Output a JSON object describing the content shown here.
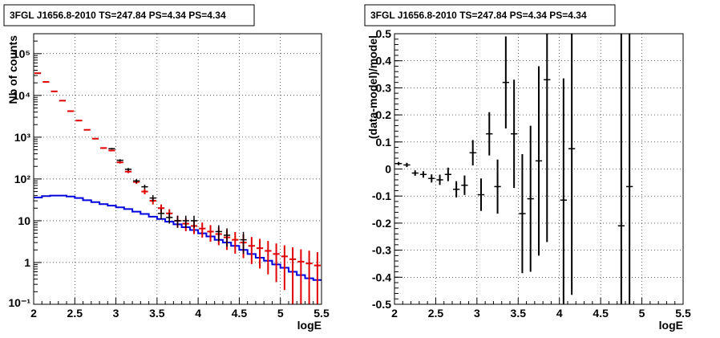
{
  "colors": {
    "data": "#000000",
    "model_total": "#e00000",
    "model_component": "#0000dd",
    "frame": "#000000",
    "grid": "#000000"
  },
  "chart_data": [
    {
      "type": "line",
      "title": "3FGL J1656.8-2010 TS=247.84 PS=4.34 PS=4.34",
      "xlabel": "logE",
      "ylabel": "Nb of counts",
      "xlim": [
        2,
        5.5
      ],
      "ylim": [
        0.1,
        300000
      ],
      "yscale": "log",
      "grid": true,
      "x_ticks": [
        "2",
        "2.5",
        "3",
        "3.5",
        "4",
        "4.5",
        "5",
        "5.5"
      ],
      "y_ticks": [
        "10⁻¹",
        "1",
        "10",
        "10²",
        "10³",
        "10⁴",
        "10⁵"
      ],
      "bin_width": 0.1,
      "data": {
        "x": [
          2.95,
          3.05,
          3.15,
          3.25,
          3.35,
          3.45,
          3.55,
          3.65,
          3.75,
          3.85,
          3.95,
          4.25,
          4.35,
          4.55
        ],
        "y": [
          530,
          280,
          170,
          90,
          65,
          35,
          15,
          12,
          10,
          10,
          10,
          5.5,
          4.5,
          3.5
        ],
        "yerr": [
          23,
          17,
          13,
          9.5,
          8,
          6,
          4,
          3.5,
          3.2,
          3.2,
          3.2,
          2.3,
          2.1,
          1.9
        ]
      },
      "series": [
        {
          "style": "red-errorbars",
          "x": [
            2.05,
            2.15,
            2.25,
            2.35,
            2.45,
            2.55,
            2.65,
            2.75,
            2.85,
            2.95,
            3.05,
            3.15,
            3.25,
            3.35,
            3.45,
            3.55,
            3.65,
            3.75,
            3.85,
            3.95,
            4.05,
            4.15,
            4.25,
            4.35,
            4.45,
            4.55,
            4.65,
            4.75,
            4.85,
            4.95,
            5.05,
            5.15,
            5.25,
            5.35,
            5.45
          ],
          "y": [
            34000,
            21000,
            12500,
            7500,
            4200,
            2500,
            1500,
            920,
            550,
            480,
            250,
            150,
            85,
            50,
            30,
            20,
            15,
            10,
            8.5,
            7.5,
            6.5,
            5.5,
            4.8,
            4,
            3.5,
            3,
            2.5,
            2.2,
            1.9,
            1.6,
            1.4,
            1.2,
            1.05,
            0.95,
            0.85
          ],
          "yerr": [
            184,
            145,
            112,
            87,
            65,
            50,
            39,
            30,
            23,
            22,
            16,
            12,
            9.2,
            7,
            5.5,
            4.5,
            3.9,
            3.2,
            2.9,
            2.7,
            2.55,
            2.35,
            2.2,
            2,
            1.87,
            1.73,
            1.58,
            1.48,
            1.38,
            1.26,
            1.18,
            1.1,
            1.02,
            0.97,
            0.92
          ]
        },
        {
          "style": "blue-step",
          "x": [
            2.05,
            2.15,
            2.25,
            2.35,
            2.45,
            2.55,
            2.65,
            2.75,
            2.85,
            2.95,
            3.05,
            3.15,
            3.25,
            3.35,
            3.45,
            3.55,
            3.65,
            3.75,
            3.85,
            3.95,
            4.05,
            4.15,
            4.25,
            4.35,
            4.45,
            4.55,
            4.65,
            4.75,
            4.85,
            4.95,
            5.05,
            5.15,
            5.25,
            5.35,
            5.45
          ],
          "y": [
            36,
            39,
            40,
            40,
            38,
            35,
            31,
            28,
            25,
            23,
            21,
            19,
            16.5,
            14.5,
            12.5,
            11,
            9.5,
            8.2,
            7,
            6,
            5,
            4.2,
            3.5,
            3,
            2.5,
            2,
            1.6,
            1.3,
            1.1,
            0.9,
            0.75,
            0.6,
            0.5,
            0.42,
            0.38
          ]
        }
      ]
    },
    {
      "type": "scatter",
      "title": "3FGL J1656.8-2010 TS=247.84 PS=4.34 PS=4.34",
      "xlabel": "logE",
      "ylabel": "(data-model)/model",
      "xlim": [
        2,
        5.5
      ],
      "ylim": [
        -0.5,
        0.5
      ],
      "grid": true,
      "x_ticks": [
        "2",
        "2.5",
        "3",
        "3.5",
        "4",
        "4.5",
        "5",
        "5.5"
      ],
      "y_ticks": [
        "-0.5",
        "-0.4",
        "-0.3",
        "-0.2",
        "-0.1",
        "0",
        "0.1",
        "0.2",
        "0.3",
        "0.4",
        "0.5"
      ],
      "bin_width": 0.1,
      "x": [
        2.05,
        2.15,
        2.25,
        2.35,
        2.45,
        2.55,
        2.65,
        2.75,
        2.85,
        2.95,
        3.05,
        3.15,
        3.25,
        3.35,
        3.45,
        3.55,
        3.65,
        3.75,
        3.85,
        4.05,
        4.15,
        4.75,
        4.85
      ],
      "y": [
        0.02,
        0.015,
        -0.015,
        -0.02,
        -0.035,
        -0.04,
        -0.02,
        -0.075,
        -0.06,
        0.06,
        -0.095,
        0.13,
        -0.065,
        0.32,
        0.13,
        -0.165,
        -0.11,
        0.03,
        0.33,
        -0.115,
        0.075,
        -0.21,
        -0.065
      ],
      "yerr": [
        0.006,
        0.008,
        0.01,
        0.012,
        0.015,
        0.019,
        0.025,
        0.03,
        0.036,
        0.047,
        0.06,
        0.08,
        0.1,
        0.17,
        0.2,
        0.22,
        0.27,
        0.35,
        0.6,
        0.45,
        0.54,
        0.8,
        0.8
      ]
    }
  ]
}
